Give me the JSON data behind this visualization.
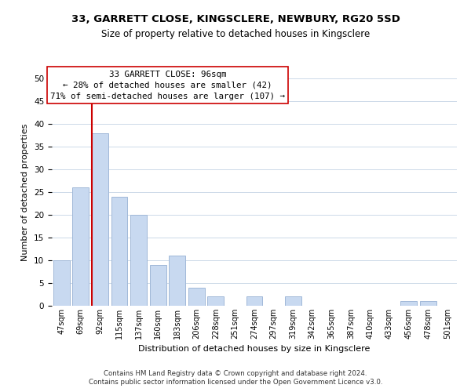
{
  "title": "33, GARRETT CLOSE, KINGSCLERE, NEWBURY, RG20 5SD",
  "subtitle": "Size of property relative to detached houses in Kingsclere",
  "xlabel": "Distribution of detached houses by size in Kingsclere",
  "ylabel": "Number of detached properties",
  "bar_color": "#c8d9f0",
  "bar_edge_color": "#a0b8d8",
  "categories": [
    "47sqm",
    "69sqm",
    "92sqm",
    "115sqm",
    "137sqm",
    "160sqm",
    "183sqm",
    "206sqm",
    "228sqm",
    "251sqm",
    "274sqm",
    "297sqm",
    "319sqm",
    "342sqm",
    "365sqm",
    "387sqm",
    "410sqm",
    "433sqm",
    "456sqm",
    "478sqm",
    "501sqm"
  ],
  "values": [
    10,
    26,
    38,
    24,
    20,
    9,
    11,
    4,
    2,
    0,
    2,
    0,
    2,
    0,
    0,
    0,
    0,
    0,
    1,
    1,
    0
  ],
  "ylim": [
    0,
    50
  ],
  "yticks": [
    0,
    5,
    10,
    15,
    20,
    25,
    30,
    35,
    40,
    45,
    50
  ],
  "vline_x_index": 2,
  "vline_color": "#cc0000",
  "annotation_title": "33 GARRETT CLOSE: 96sqm",
  "annotation_line1": "← 28% of detached houses are smaller (42)",
  "annotation_line2": "71% of semi-detached houses are larger (107) →",
  "annotation_box_color": "#ffffff",
  "annotation_box_edge": "#cc0000",
  "footer1": "Contains HM Land Registry data © Crown copyright and database right 2024.",
  "footer2": "Contains public sector information licensed under the Open Government Licence v3.0.",
  "background_color": "#ffffff",
  "grid_color": "#ccd9e8"
}
